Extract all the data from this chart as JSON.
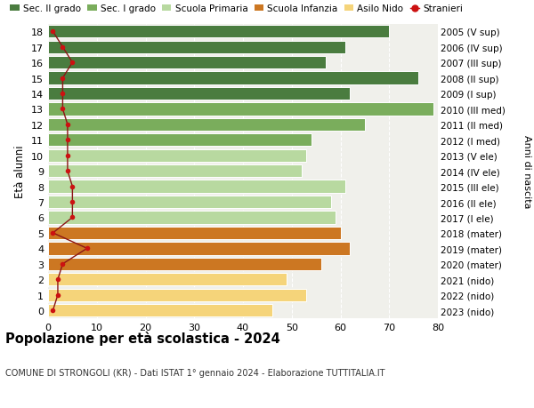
{
  "ages": [
    18,
    17,
    16,
    15,
    14,
    13,
    12,
    11,
    10,
    9,
    8,
    7,
    6,
    5,
    4,
    3,
    2,
    1,
    0
  ],
  "bar_values": [
    70,
    61,
    57,
    76,
    62,
    79,
    65,
    54,
    53,
    52,
    61,
    58,
    59,
    60,
    62,
    56,
    49,
    53,
    46
  ],
  "stranieri_values": [
    1,
    3,
    5,
    3,
    3,
    3,
    4,
    4,
    4,
    4,
    5,
    5,
    5,
    1,
    8,
    3,
    2,
    2,
    1
  ],
  "right_labels": [
    "2005 (V sup)",
    "2006 (IV sup)",
    "2007 (III sup)",
    "2008 (II sup)",
    "2009 (I sup)",
    "2010 (III med)",
    "2011 (II med)",
    "2012 (I med)",
    "2013 (V ele)",
    "2014 (IV ele)",
    "2015 (III ele)",
    "2016 (II ele)",
    "2017 (I ele)",
    "2018 (mater)",
    "2019 (mater)",
    "2020 (mater)",
    "2021 (nido)",
    "2022 (nido)",
    "2023 (nido)"
  ],
  "bar_colors": [
    "#4a7c3f",
    "#4a7c3f",
    "#4a7c3f",
    "#4a7c3f",
    "#4a7c3f",
    "#7aad5c",
    "#7aad5c",
    "#7aad5c",
    "#b8d9a0",
    "#b8d9a0",
    "#b8d9a0",
    "#b8d9a0",
    "#b8d9a0",
    "#cc7722",
    "#cc7722",
    "#cc7722",
    "#f5d47a",
    "#f5d47a",
    "#f5d47a"
  ],
  "legend_colors": [
    "#4a7c3f",
    "#7aad5c",
    "#b8d9a0",
    "#cc7722",
    "#f5d47a"
  ],
  "legend_labels": [
    "Sec. II grado",
    "Sec. I grado",
    "Scuola Primaria",
    "Scuola Infanzia",
    "Asilo Nido",
    "Stranieri"
  ],
  "title": "Popolazione per età scolastica - 2024",
  "subtitle": "COMUNE DI STRONGOLI (KR) - Dati ISTAT 1° gennaio 2024 - Elaborazione TUTTITALIA.IT",
  "ylabel_left": "Età alunni",
  "ylabel_right": "Anni di nascita",
  "xlim": [
    0,
    80
  ],
  "background_color": "#ffffff",
  "plot_bg_color": "#f0f0eb"
}
